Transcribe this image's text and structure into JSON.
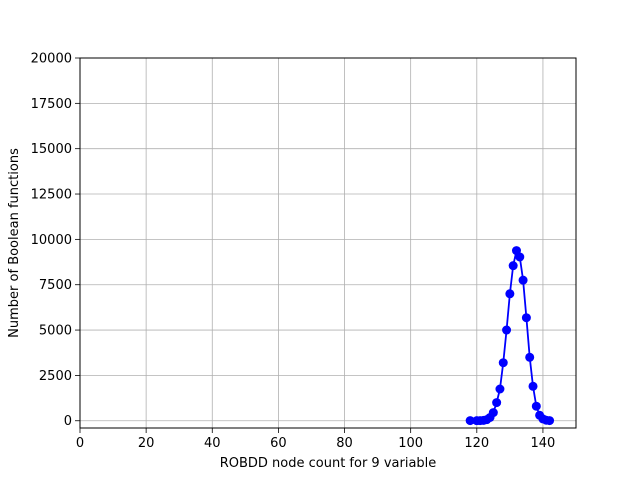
{
  "chart_data": {
    "type": "line",
    "title": "",
    "xlabel": "ROBDD node count for 9 variable",
    "ylabel": "Number of Boolean functions",
    "xlim": [
      0,
      150
    ],
    "ylim": [
      -400,
      20000
    ],
    "xticks": [
      0,
      20,
      40,
      60,
      80,
      100,
      120,
      140
    ],
    "yticks": [
      0,
      2500,
      5000,
      7500,
      10000,
      12500,
      15000,
      17500,
      20000
    ],
    "grid": true,
    "legend": "none",
    "series": [
      {
        "color": "#0000ff",
        "marker": "circle",
        "x": [
          118,
          120,
          121,
          122,
          123,
          124,
          125,
          126,
          127,
          128,
          129,
          130,
          131,
          132,
          133,
          134,
          135,
          136,
          137,
          138,
          139,
          140,
          141,
          142
        ],
        "y": [
          10,
          5,
          10,
          20,
          60,
          180,
          450,
          1000,
          1750,
          3200,
          5000,
          7000,
          8550,
          9380,
          9030,
          7750,
          5680,
          3500,
          1900,
          800,
          300,
          100,
          30,
          10
        ]
      }
    ]
  }
}
